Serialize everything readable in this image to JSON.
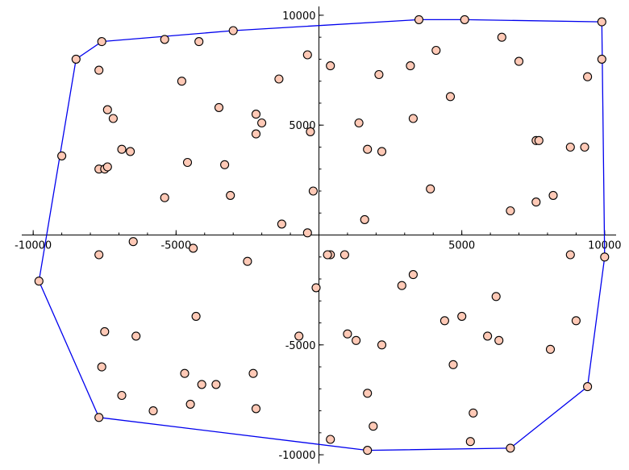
{
  "chart_data": {
    "type": "scatter",
    "xlim": [
      -10400,
      10400
    ],
    "ylim": [
      -10400,
      10400
    ],
    "x_ticks": [
      -10000,
      -5000,
      0,
      5000,
      10000
    ],
    "y_ticks": [
      -10000,
      -5000,
      0,
      5000,
      10000
    ],
    "x_tick_labels": [
      "-10000",
      "-5000",
      "",
      "5000",
      "10000"
    ],
    "y_tick_labels": [
      "-10000",
      "-5000",
      "",
      "5000",
      "10000"
    ],
    "minor_tick_step": 1000,
    "grid": false,
    "colors": {
      "hull": "#0000ee",
      "point_fill": "#ffc9b6",
      "point_edge": "#000000"
    },
    "points": [
      [
        -9800,
        -2100
      ],
      [
        -9000,
        3600
      ],
      [
        -8500,
        8000
      ],
      [
        -7600,
        8800
      ],
      [
        -7700,
        7500
      ],
      [
        -7400,
        5700
      ],
      [
        -7200,
        5300
      ],
      [
        -6900,
        3900
      ],
      [
        -6600,
        3800
      ],
      [
        -7700,
        3000
      ],
      [
        -7500,
        3000
      ],
      [
        -7400,
        3100
      ],
      [
        -5400,
        8900
      ],
      [
        -4800,
        7000
      ],
      [
        -4200,
        8800
      ],
      [
        -3500,
        5800
      ],
      [
        -3000,
        9300
      ],
      [
        -2200,
        5500
      ],
      [
        -2000,
        5100
      ],
      [
        -2200,
        4600
      ],
      [
        -1400,
        7100
      ],
      [
        -400,
        8200
      ],
      [
        -300,
        4700
      ],
      [
        -200,
        2000
      ],
      [
        -4600,
        3300
      ],
      [
        -3300,
        3200
      ],
      [
        -3100,
        1800
      ],
      [
        -5400,
        1700
      ],
      [
        -1300,
        500
      ],
      [
        -400,
        100
      ],
      [
        -6500,
        -300
      ],
      [
        -4400,
        -600
      ],
      [
        -7700,
        -900
      ],
      [
        -2500,
        -1200
      ],
      [
        -7500,
        -4400
      ],
      [
        -6400,
        -4600
      ],
      [
        -7600,
        -6000
      ],
      [
        -6900,
        -7300
      ],
      [
        -4300,
        -3700
      ],
      [
        -4700,
        -6300
      ],
      [
        -3600,
        -6800
      ],
      [
        -4100,
        -6800
      ],
      [
        -4500,
        -7700
      ],
      [
        -5800,
        -8000
      ],
      [
        -7700,
        -8300
      ],
      [
        -2300,
        -6300
      ],
      [
        -2200,
        -7900
      ],
      [
        -700,
        -4600
      ],
      [
        -100,
        -2400
      ],
      [
        400,
        -900
      ],
      [
        300,
        -900
      ],
      [
        900,
        -900
      ],
      [
        3500,
        9800
      ],
      [
        5100,
        9800
      ],
      [
        9900,
        9700
      ],
      [
        6400,
        9000
      ],
      [
        4100,
        8400
      ],
      [
        7000,
        7900
      ],
      [
        9900,
        8000
      ],
      [
        3200,
        7700
      ],
      [
        2100,
        7300
      ],
      [
        9400,
        7200
      ],
      [
        400,
        7700
      ],
      [
        4600,
        6300
      ],
      [
        3300,
        5300
      ],
      [
        1400,
        5100
      ],
      [
        1700,
        3900
      ],
      [
        2200,
        3800
      ],
      [
        7600,
        4300
      ],
      [
        7700,
        4300
      ],
      [
        8800,
        4000
      ],
      [
        9300,
        4000
      ],
      [
        3900,
        2100
      ],
      [
        7600,
        1500
      ],
      [
        8200,
        1800
      ],
      [
        6700,
        1100
      ],
      [
        1600,
        700
      ],
      [
        10000,
        -1000
      ],
      [
        8800,
        -900
      ],
      [
        3300,
        -1800
      ],
      [
        2900,
        -2300
      ],
      [
        6200,
        -2800
      ],
      [
        5000,
        -3700
      ],
      [
        4400,
        -3900
      ],
      [
        9000,
        -3900
      ],
      [
        5900,
        -4600
      ],
      [
        6300,
        -4800
      ],
      [
        8100,
        -5200
      ],
      [
        1000,
        -4500
      ],
      [
        1300,
        -4800
      ],
      [
        2200,
        -5000
      ],
      [
        4700,
        -5900
      ],
      [
        9400,
        -6900
      ],
      [
        1700,
        -7200
      ],
      [
        5400,
        -8100
      ],
      [
        1900,
        -8700
      ],
      [
        400,
        -9300
      ],
      [
        5300,
        -9400
      ],
      [
        1700,
        -9800
      ],
      [
        6700,
        -9700
      ]
    ],
    "hull": [
      [
        -9800,
        -2100
      ],
      [
        -8500,
        8000
      ],
      [
        -7600,
        8800
      ],
      [
        -3000,
        9300
      ],
      [
        3500,
        9800
      ],
      [
        5100,
        9800
      ],
      [
        9900,
        9700
      ],
      [
        10000,
        -1000
      ],
      [
        9400,
        -6900
      ],
      [
        6700,
        -9700
      ],
      [
        1700,
        -9800
      ],
      [
        -7700,
        -8300
      ],
      [
        -9800,
        -2100
      ]
    ]
  }
}
